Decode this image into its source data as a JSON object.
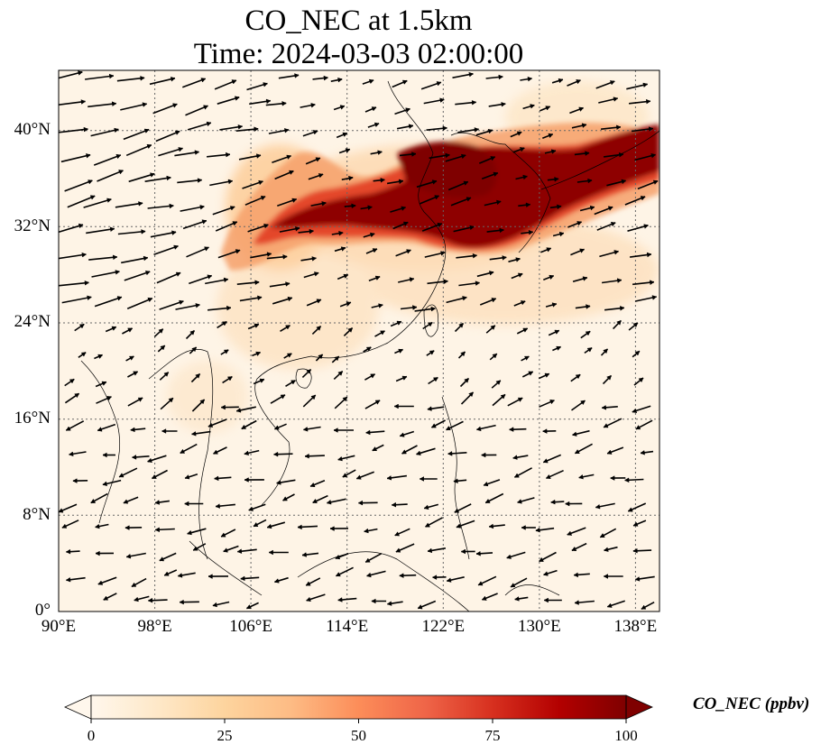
{
  "title": {
    "line1": "CO_NEC at 1.5km",
    "line2": "Time: 2024-03-03 02:00:00"
  },
  "map": {
    "lon_range": [
      90,
      140
    ],
    "lat_range": [
      0,
      45
    ],
    "lon_ticks": [
      "90°E",
      "98°E",
      "106°E",
      "114°E",
      "122°E",
      "130°E",
      "138°E"
    ],
    "lat_ticks": [
      "0°",
      "8°N",
      "16°N",
      "24°N",
      "32°N",
      "40°N"
    ],
    "gridlines": true,
    "colormap": "OrRd",
    "wind_arrows": true
  },
  "colorbar": {
    "label": "CO_NEC (ppbv)",
    "ticks": [
      "0",
      "25",
      "50",
      "75",
      "100"
    ],
    "range": [
      0,
      100
    ],
    "extend": "both",
    "colors": [
      "#fff7ec",
      "#fee8c8",
      "#fdd49e",
      "#fdbb84",
      "#fc8d59",
      "#ef6548",
      "#d7301f",
      "#b30000",
      "#7f0000"
    ]
  }
}
